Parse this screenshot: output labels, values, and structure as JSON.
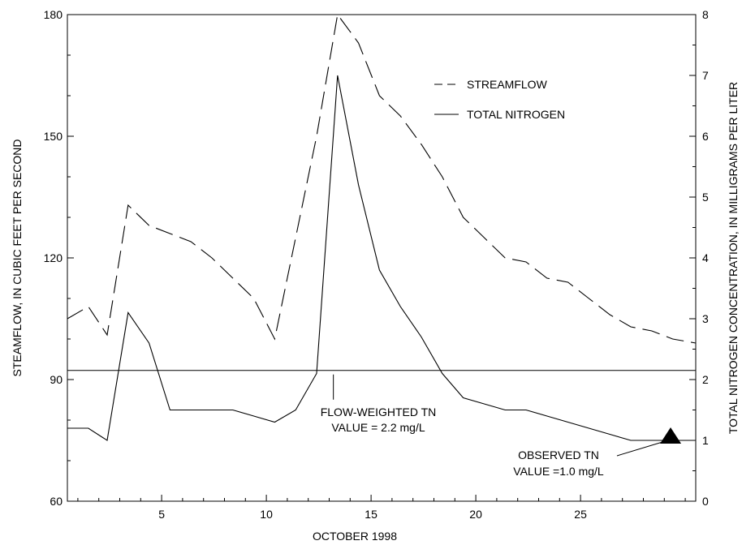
{
  "chart_data": {
    "type": "line",
    "xlabel": "OCTOBER 1998",
    "ylabel_left": "STEAMFLOW, IN CUBIC FEET PER SECOND",
    "ylabel_right": "TOTAL NITROGEN CONCENTRATION, IN MILLIGRAMS PER LITER",
    "xlim": [
      0.5,
      30.5
    ],
    "ylim_left": [
      60,
      180
    ],
    "ylim_right": [
      0,
      8
    ],
    "x_ticks": [
      5,
      10,
      15,
      20,
      25
    ],
    "x_minor_ticks": [
      1,
      2,
      3,
      4,
      5,
      6,
      7,
      8,
      9,
      10,
      11,
      12,
      13,
      14,
      15,
      16,
      17,
      18,
      19,
      20,
      21,
      22,
      23,
      24,
      25,
      26,
      27,
      28,
      29,
      30
    ],
    "y_left_ticks": [
      60,
      90,
      120,
      150,
      180
    ],
    "y_right_ticks": [
      0,
      1,
      2,
      3,
      4,
      5,
      6,
      7,
      8
    ],
    "grid": false,
    "legend_position": "top-right",
    "series": [
      {
        "name": "STREAMFLOW",
        "axis": "left",
        "style": "dashed",
        "x": [
          0.5,
          1.5,
          2.4,
          3.4,
          4.4,
          5.4,
          6.4,
          7.4,
          8.4,
          9.4,
          10.4,
          11.4,
          12.4,
          13.4,
          14.4,
          15.4,
          16.4,
          17.4,
          18.4,
          19.4,
          20.4,
          21.4,
          22.4,
          23.4,
          24.4,
          25.4,
          26.4,
          27.4,
          28.4,
          29.4,
          30.5
        ],
        "values": [
          105,
          108,
          101,
          133,
          128,
          126,
          124,
          120,
          115,
          110,
          100,
          125,
          150,
          180,
          173,
          160,
          155,
          148,
          140,
          130,
          125,
          120,
          119,
          115,
          114,
          110,
          106,
          103,
          102,
          100,
          99
        ]
      },
      {
        "name": "TOTAL NITROGEN",
        "axis": "right",
        "style": "solid",
        "x": [
          0.5,
          1.5,
          2.4,
          3.4,
          4.4,
          5.4,
          6.4,
          7.4,
          8.4,
          9.4,
          10.4,
          11.4,
          12.4,
          13.4,
          14.4,
          15.4,
          16.4,
          17.4,
          18.4,
          19.4,
          20.4,
          21.4,
          22.4,
          23.4,
          24.4,
          25.4,
          26.4,
          27.4,
          28.4,
          29.4,
          30.5
        ],
        "values": [
          1.2,
          1.2,
          1.0,
          3.1,
          2.6,
          1.5,
          1.5,
          1.5,
          1.5,
          1.4,
          1.3,
          1.5,
          2.1,
          7.0,
          5.2,
          3.8,
          3.2,
          2.7,
          2.1,
          1.7,
          1.6,
          1.5,
          1.5,
          1.4,
          1.3,
          1.2,
          1.1,
          1.0,
          1.0,
          1.0,
          1.0
        ]
      }
    ],
    "reference_line": {
      "axis": "right",
      "value": 2.15
    },
    "annotations": {
      "flow_weighted": {
        "line1": "FLOW-WEIGHTED TN",
        "line2": "VALUE = 2.2 mg/L",
        "x": 13.2
      },
      "observed": {
        "line1": "OBSERVED TN",
        "line2": "VALUE =1.0 mg/L",
        "marker_x": 29.3,
        "marker_value": 1.0
      }
    },
    "colors": {
      "line": "#000000",
      "background": "#ffffff"
    }
  }
}
